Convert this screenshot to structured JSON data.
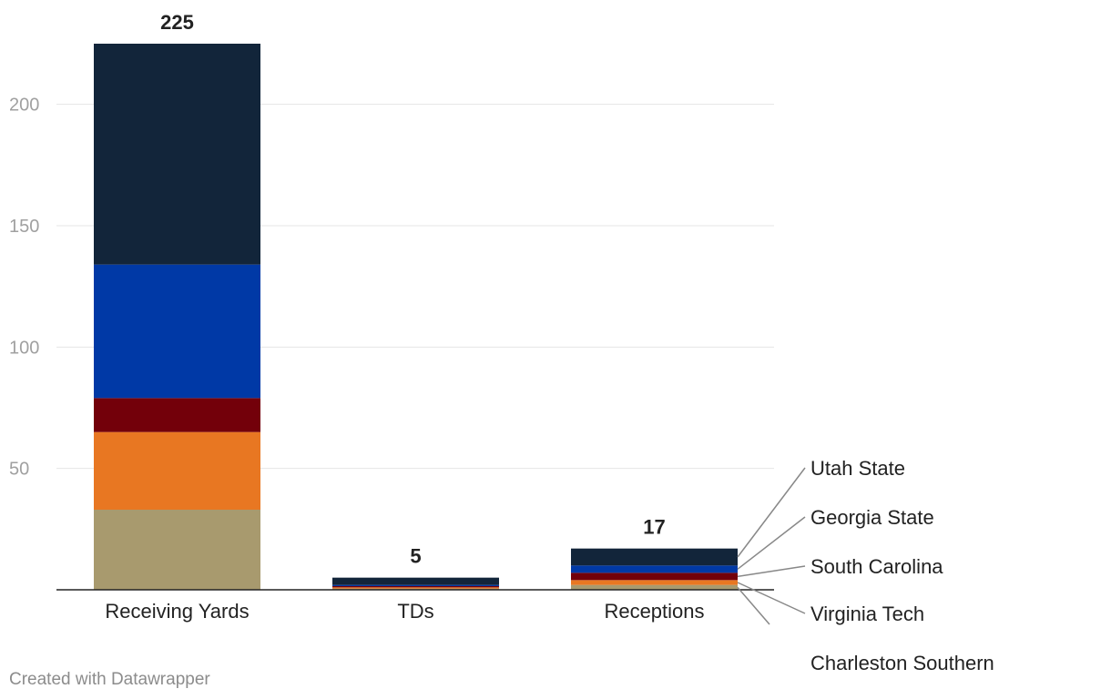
{
  "chart_data": {
    "type": "bar",
    "stacked": true,
    "title": "",
    "xlabel": "",
    "ylabel": "",
    "ylim": [
      0,
      225
    ],
    "yticks": [
      50,
      100,
      150,
      200
    ],
    "grid": true,
    "legend_placement": "right, labels pointing to Receptions bar",
    "categories": [
      "Receiving Yards",
      "TDs",
      "Receptions"
    ],
    "totals": [
      225,
      5,
      17
    ],
    "series": [
      {
        "name": "Charleston Southern",
        "color": "#a89a6e",
        "values": [
          33,
          0.5,
          2
        ]
      },
      {
        "name": "Virginia Tech",
        "color": "#e87722",
        "values": [
          32,
          0.5,
          2
        ]
      },
      {
        "name": "South Carolina",
        "color": "#73000a",
        "values": [
          14,
          0.5,
          3
        ]
      },
      {
        "name": "Georgia State",
        "color": "#0039a6",
        "values": [
          55,
          0.5,
          3
        ]
      },
      {
        "name": "Utah State",
        "color": "#12253a",
        "values": [
          91,
          3,
          7
        ]
      }
    ]
  },
  "footer": {
    "credit": "Created with Datawrapper"
  }
}
